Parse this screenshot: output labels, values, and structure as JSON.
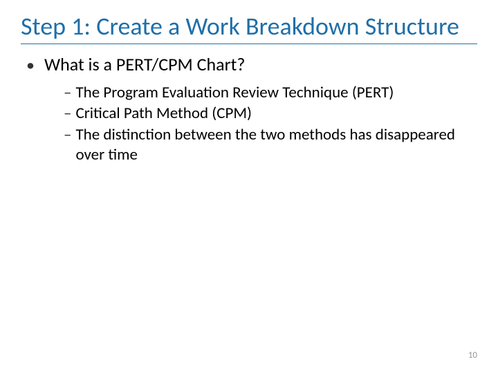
{
  "slide": {
    "title": "Step 1: Create a Work Breakdown Structure",
    "title_color": "#1f6fa8",
    "title_fontsize": 36,
    "background_color": "#ffffff",
    "body_text_color": "#000000",
    "level1_fontsize": 26,
    "level2_fontsize": 23,
    "bullets": {
      "level1": [
        {
          "text": "What is a PERT/CPM Chart?",
          "children": [
            "The Program Evaluation Review Technique (PERT)",
            "Critical Path Method (CPM)",
            "The distinction between the two methods has disappeared over time"
          ]
        }
      ]
    },
    "page_number": "10",
    "page_number_color": "#999999"
  }
}
